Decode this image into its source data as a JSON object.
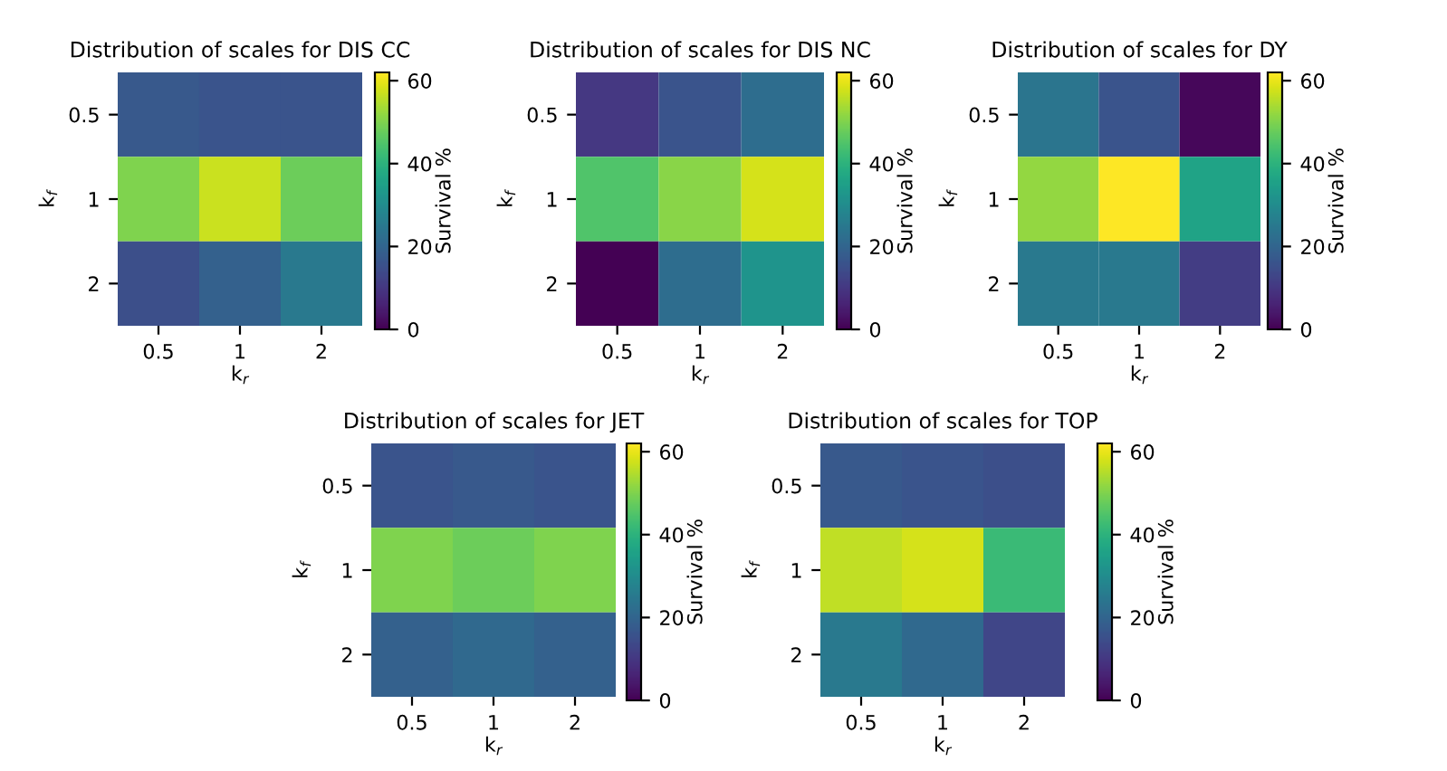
{
  "chart_data": [
    {
      "type": "heatmap",
      "title": "Distribution of scales for DIS CC",
      "xlabel": "k$_{r}$",
      "ylabel": "k$_{f}$",
      "clabel": "Survival %",
      "categories": [
        "0.5",
        "1",
        "2"
      ],
      "y_categories": [
        "0.5",
        "1",
        "2"
      ],
      "cells": [
        [
          17,
          16,
          16
        ],
        [
          50,
          57,
          48
        ],
        [
          15,
          19,
          25
        ]
      ],
      "clim": [
        0,
        62
      ],
      "cticks": [
        0,
        20,
        40,
        60
      ]
    },
    {
      "type": "heatmap",
      "title": "Distribution of scales for DIS NC",
      "xlabel": "k$_{r}$",
      "ylabel": "k$_{f}$",
      "clabel": "Survival %",
      "categories": [
        "0.5",
        "1",
        "2"
      ],
      "y_categories": [
        "0.5",
        "1",
        "2"
      ],
      "cells": [
        [
          10,
          16,
          22
        ],
        [
          45,
          51,
          58
        ],
        [
          0,
          22,
          32
        ]
      ],
      "clim": [
        0,
        62
      ],
      "cticks": [
        0,
        20,
        40,
        60
      ]
    },
    {
      "type": "heatmap",
      "title": "Distribution of scales for DY",
      "xlabel": "k$_{r}$",
      "ylabel": "k$_{f}$",
      "clabel": "Survival %",
      "categories": [
        "0.5",
        "1",
        "2"
      ],
      "y_categories": [
        "0.5",
        "1",
        "2"
      ],
      "cells": [
        [
          24,
          16,
          1
        ],
        [
          52,
          62,
          36
        ],
        [
          25,
          25,
          11
        ]
      ],
      "clim": [
        0,
        62
      ],
      "cticks": [
        0,
        20,
        40,
        60
      ]
    },
    {
      "type": "heatmap",
      "title": "Distribution of scales for JET",
      "xlabel": "k$_{r}$",
      "ylabel": "k$_{f}$",
      "clabel": "Survival %",
      "categories": [
        "0.5",
        "1",
        "2"
      ],
      "y_categories": [
        "0.5",
        "1",
        "2"
      ],
      "cells": [
        [
          16,
          17,
          16
        ],
        [
          50,
          48,
          50
        ],
        [
          19,
          21,
          19
        ]
      ],
      "clim": [
        0,
        62
      ],
      "cticks": [
        0,
        20,
        40,
        60
      ]
    },
    {
      "type": "heatmap",
      "title": "Distribution of scales for TOP",
      "xlabel": "k$_{r}$",
      "ylabel": "k$_{f}$",
      "clabel": "Survival %",
      "categories": [
        "0.5",
        "1",
        "2"
      ],
      "y_categories": [
        "0.5",
        "1",
        "2"
      ],
      "cells": [
        [
          17,
          16,
          15
        ],
        [
          56,
          58,
          42
        ],
        [
          25,
          21,
          13
        ]
      ],
      "clim": [
        0,
        62
      ],
      "cticks": [
        0,
        20,
        40,
        60
      ]
    }
  ]
}
